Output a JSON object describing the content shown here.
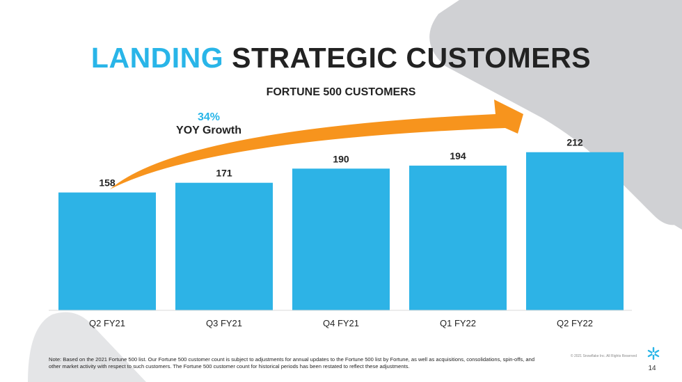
{
  "slide": {
    "title_accent": "LANDING",
    "title_main": "STRATEGIC CUSTOMERS",
    "growth": {
      "percent": "34%",
      "label": "YOY Growth"
    },
    "footnote": "Note: Based on the 2021 Fortune 500 list. Our Fortune 500 customer count is subject to adjustments for annual updates to the Fortune 500 list by Fortune, as well as acquisitions, consolidations, spin-offs, and other market activity with respect to such customers. The Fortune 500 customer count for historical periods has been restated to reflect these adjustments.",
    "copyright": "© 2021 Snowflake Inc. All Rights Reserved",
    "page_number": "14"
  },
  "colors": {
    "accent": "#29b5e8",
    "bar": "#2db3e6",
    "arrow": "#f7941d",
    "background_shape": "#cfd0d3"
  },
  "icons": {
    "logo": "snowflake-logo-icon"
  },
  "chart_data": {
    "type": "bar",
    "title": "FORTUNE 500 CUSTOMERS",
    "categories": [
      "Q2 FY21",
      "Q3 FY21",
      "Q4 FY21",
      "Q1 FY22",
      "Q2 FY22"
    ],
    "values": [
      158,
      171,
      190,
      194,
      212
    ],
    "data_labels": [
      "158",
      "171",
      "190",
      "194",
      "212"
    ],
    "ylim": [
      0,
      250
    ],
    "grid": false,
    "legend": "none"
  }
}
